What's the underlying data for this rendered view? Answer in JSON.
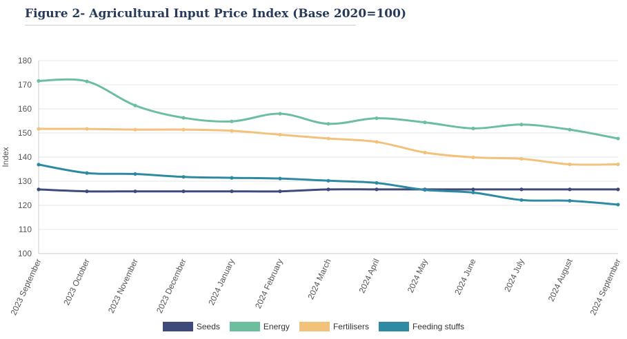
{
  "figure_title": "Figure 2- Agricultural Input Price Index (Base 2020=100)",
  "chart_data": {
    "type": "line",
    "title": "Figure 2- Agricultural Input Price Index (Base 2020=100)",
    "xlabel": "",
    "ylabel": "Index",
    "ylim": [
      100,
      180
    ],
    "yticks": [
      100,
      110,
      120,
      130,
      140,
      150,
      160,
      170,
      180
    ],
    "grid": true,
    "legend_position": "bottom-center",
    "categories": [
      "2023 September",
      "2023 October",
      "2023 November",
      "2023 December",
      "2024 January",
      "2024 February",
      "2024 March",
      "2024 April",
      "2024 May",
      "2024 June",
      "2024 July",
      "2024 August",
      "2024 September"
    ],
    "series": [
      {
        "name": "Seeds",
        "color": "#3d4a7a",
        "values": [
          126.6,
          125.8,
          125.8,
          125.8,
          125.8,
          125.8,
          126.6,
          126.6,
          126.6,
          126.6,
          126.6,
          126.6,
          126.6
        ]
      },
      {
        "name": "Energy",
        "color": "#6bbf9e",
        "values": [
          171.6,
          171.4,
          161.4,
          156.3,
          154.8,
          158.0,
          153.8,
          156.1,
          154.4,
          151.9,
          153.5,
          151.4,
          147.7
        ]
      },
      {
        "name": "Fertilisers",
        "color": "#f2c27a",
        "values": [
          151.7,
          151.7,
          151.4,
          151.4,
          150.9,
          149.3,
          147.7,
          146.3,
          141.9,
          139.9,
          139.3,
          137.0,
          137.0
        ]
      },
      {
        "name": "Feeding stuffs",
        "color": "#2e8aa3",
        "values": [
          136.9,
          133.4,
          133.0,
          131.8,
          131.4,
          131.1,
          130.2,
          129.3,
          126.4,
          125.3,
          122.2,
          121.9,
          120.3
        ]
      }
    ]
  }
}
